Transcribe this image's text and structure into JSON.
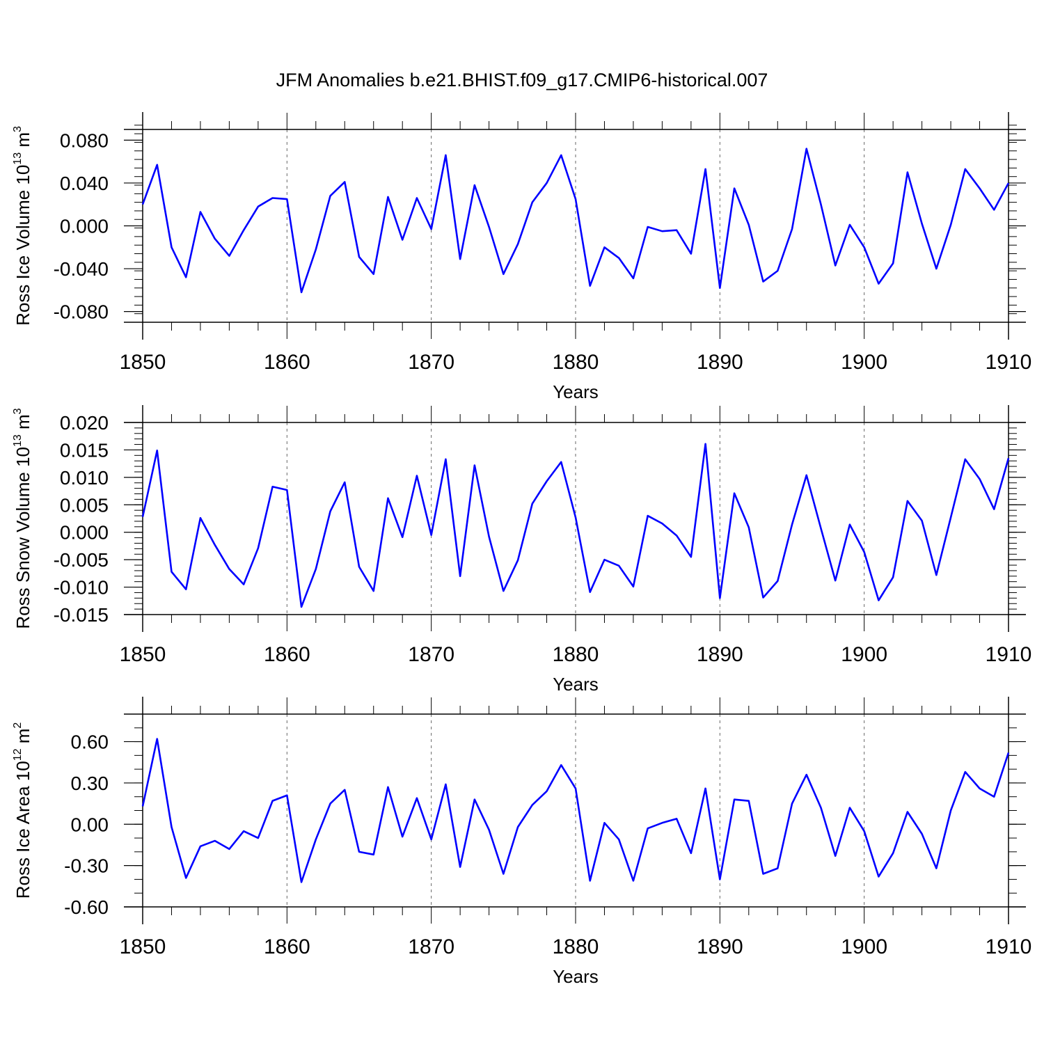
{
  "figure_title": "JFM Anomalies b.e21.BHIST.f09_g17.CMIP6-historical.007",
  "chart_data": [
    {
      "type": "line",
      "title": "JFM Anomalies b.e21.BHIST.f09_g17.CMIP6-historical.007",
      "ylabel_main": "Ross Ice Volume 10",
      "ylabel_exp1": "13",
      "ylabel_unit": " m",
      "ylabel_exp2": "3",
      "xlabel": "Years",
      "xlim": [
        1850,
        1910
      ],
      "ylim": [
        -0.09,
        0.09
      ],
      "x_ticks": [
        "1850",
        "1860",
        "1870",
        "1880",
        "1890",
        "1900",
        "1910"
      ],
      "y_ticks": [
        {
          "value": 0.08,
          "label": "0.080"
        },
        {
          "value": 0.04,
          "label": "0.040"
        },
        {
          "value": 0.0,
          "label": "0.000"
        },
        {
          "value": -0.04,
          "label": "-0.040"
        },
        {
          "value": -0.08,
          "label": "-0.080"
        }
      ],
      "y_minor_step": 0.008,
      "line_color": "#0000ff",
      "x_start": 1850,
      "values": [
        0.02,
        0.057,
        -0.02,
        -0.048,
        0.013,
        -0.012,
        -0.028,
        -0.004,
        0.018,
        0.026,
        0.025,
        -0.062,
        -0.022,
        0.028,
        0.041,
        -0.029,
        -0.045,
        0.027,
        -0.013,
        0.026,
        -0.003,
        0.066,
        -0.031,
        0.038,
        -0.001,
        -0.045,
        -0.017,
        0.022,
        0.04,
        0.066,
        0.025,
        -0.056,
        -0.02,
        -0.03,
        -0.049,
        -0.001,
        -0.005,
        -0.004,
        -0.026,
        0.053,
        -0.058,
        0.035,
        0.001,
        -0.052,
        -0.042,
        -0.003,
        0.072,
        0.02,
        -0.037,
        0.001,
        -0.02,
        -0.054,
        -0.035,
        0.05,
        0.002,
        -0.04,
        0.001,
        0.053,
        0.035,
        0.015,
        0.04
      ]
    },
    {
      "type": "line",
      "title": "",
      "ylabel_main": "Ross Snow Volume 10",
      "ylabel_exp1": "13",
      "ylabel_unit": " m",
      "ylabel_exp2": "3",
      "xlabel": "Years",
      "xlim": [
        1850,
        1910
      ],
      "ylim": [
        -0.015,
        0.02
      ],
      "x_ticks": [
        "1850",
        "1860",
        "1870",
        "1880",
        "1890",
        "1900",
        "1910"
      ],
      "y_ticks": [
        {
          "value": 0.02,
          "label": "0.020"
        },
        {
          "value": 0.015,
          "label": "0.015"
        },
        {
          "value": 0.01,
          "label": "0.010"
        },
        {
          "value": 0.005,
          "label": "0.005"
        },
        {
          "value": 0.0,
          "label": "0.000"
        },
        {
          "value": -0.005,
          "label": "-0.005"
        },
        {
          "value": -0.01,
          "label": "-0.010"
        },
        {
          "value": -0.015,
          "label": "-0.015"
        }
      ],
      "y_minor_step": 0.001,
      "line_color": "#0000ff",
      "x_start": 1850,
      "values": [
        0.0028,
        0.0149,
        -0.0072,
        -0.0104,
        0.0026,
        -0.0023,
        -0.0067,
        -0.0095,
        -0.0029,
        0.0083,
        0.0077,
        -0.0136,
        -0.0067,
        0.0038,
        0.0091,
        -0.0063,
        -0.0107,
        0.0062,
        -0.0009,
        0.0103,
        -0.0005,
        0.0133,
        -0.008,
        0.0122,
        -0.0008,
        -0.0107,
        -0.0051,
        0.0052,
        0.0093,
        0.0128,
        0.0027,
        -0.0109,
        -0.005,
        -0.0061,
        -0.0099,
        0.003,
        0.0016,
        -0.0006,
        -0.0045,
        0.0161,
        -0.012,
        0.0071,
        0.0009,
        -0.0119,
        -0.0089,
        0.0014,
        0.0104,
        0.0007,
        -0.0088,
        0.0014,
        -0.0036,
        -0.0124,
        -0.0082,
        0.0057,
        0.0021,
        -0.0078,
        0.0027,
        0.0133,
        0.0097,
        0.0042,
        0.0135
      ]
    },
    {
      "type": "line",
      "title": "",
      "ylabel_main": "Ross Ice Area 10",
      "ylabel_exp1": "12",
      "ylabel_unit": " m",
      "ylabel_exp2": "2",
      "xlabel": "Years",
      "xlim": [
        1850,
        1910
      ],
      "ylim": [
        -0.6,
        0.8
      ],
      "x_ticks": [
        "1850",
        "1860",
        "1870",
        "1880",
        "1890",
        "1900",
        "1910"
      ],
      "y_ticks": [
        {
          "value": 0.6,
          "label": "0.60"
        },
        {
          "value": 0.3,
          "label": "0.30"
        },
        {
          "value": 0.0,
          "label": "0.00"
        },
        {
          "value": -0.3,
          "label": "-0.30"
        },
        {
          "value": -0.6,
          "label": "-0.60"
        }
      ],
      "y_minor_step": 0.1,
      "line_color": "#0000ff",
      "x_start": 1850,
      "values": [
        0.13,
        0.62,
        -0.02,
        -0.39,
        -0.16,
        -0.12,
        -0.18,
        -0.05,
        -0.1,
        0.17,
        0.21,
        -0.42,
        -0.11,
        0.15,
        0.25,
        -0.2,
        -0.22,
        0.27,
        -0.09,
        0.19,
        -0.11,
        0.29,
        -0.31,
        0.18,
        -0.04,
        -0.36,
        -0.02,
        0.14,
        0.24,
        0.43,
        0.26,
        -0.41,
        0.01,
        -0.11,
        -0.41,
        -0.03,
        0.01,
        0.04,
        -0.21,
        0.26,
        -0.4,
        0.18,
        0.17,
        -0.36,
        -0.32,
        0.15,
        0.36,
        0.12,
        -0.23,
        0.12,
        -0.05,
        -0.38,
        -0.21,
        0.09,
        -0.07,
        -0.32,
        0.1,
        0.38,
        0.26,
        0.2,
        0.52
      ]
    }
  ]
}
